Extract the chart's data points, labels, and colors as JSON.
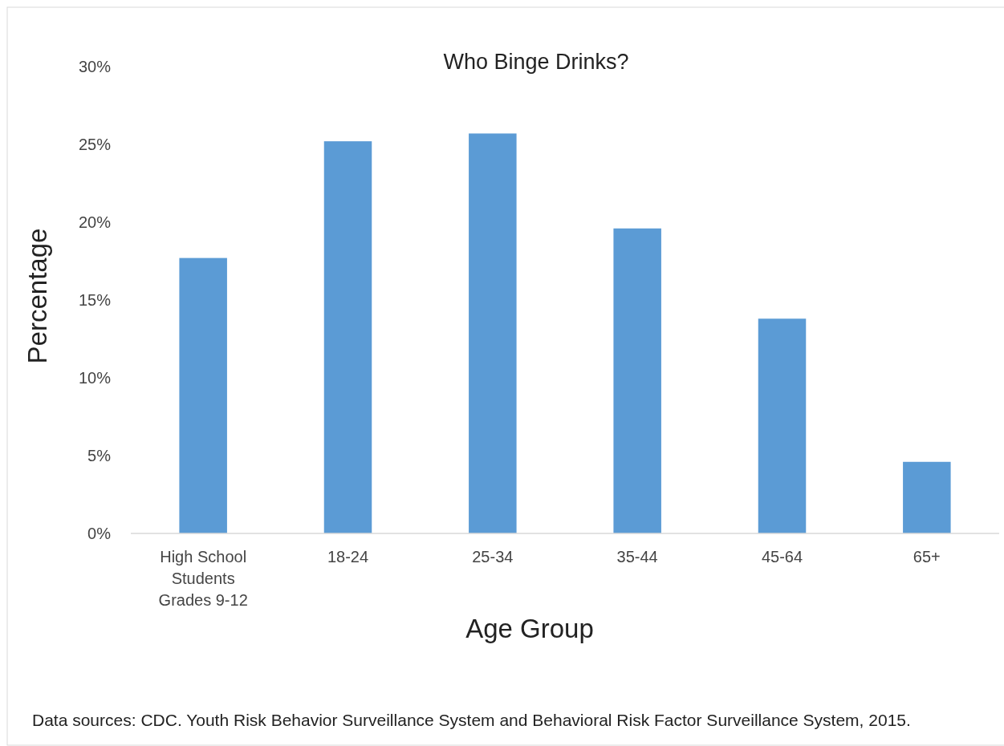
{
  "chart_data": {
    "type": "bar",
    "title": "Who Binge Drinks?",
    "xlabel": "Age Group",
    "ylabel": "Percentage",
    "categories": [
      "High School Students Grades 9-12",
      "18-24",
      "25-34",
      "35-44",
      "45-64",
      "65+"
    ],
    "values": [
      17.7,
      25.2,
      25.7,
      19.6,
      13.8,
      4.6
    ],
    "color": "#5b9bd5",
    "ylim": [
      0,
      30
    ],
    "yticks": [
      {
        "value": 0,
        "label": "0%"
      },
      {
        "value": 5,
        "label": "5%"
      },
      {
        "value": 10,
        "label": "10%"
      },
      {
        "value": 15,
        "label": "15%"
      },
      {
        "value": 20,
        "label": "20%"
      },
      {
        "value": 25,
        "label": "25%"
      },
      {
        "value": 30,
        "label": "30%"
      }
    ],
    "grid": false,
    "annotations": [
      "Data sources: CDC. Youth Risk Behavior Surveillance System and Behavioral Risk Factor Surveillance System, 2015."
    ]
  }
}
